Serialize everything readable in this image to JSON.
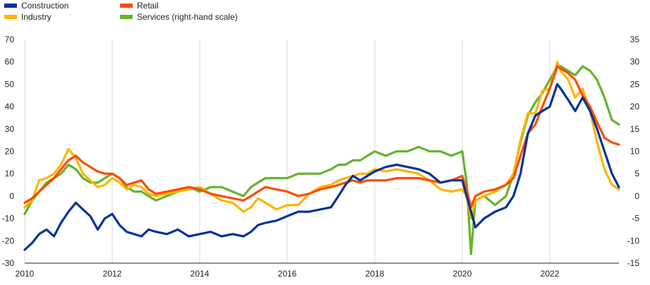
{
  "chart_data": {
    "type": "line",
    "title": "",
    "xlabel": "",
    "ylabel": "",
    "x_range": [
      2010.0,
      2023.58
    ],
    "x_ticks": [
      "2010",
      "2012",
      "2014",
      "2016",
      "2018",
      "2020",
      "2022"
    ],
    "y_left_range": [
      -30,
      70
    ],
    "y_left_ticks": [
      "-30",
      "-20",
      "-10",
      "0",
      "10",
      "20",
      "30",
      "40",
      "50",
      "60",
      "70"
    ],
    "y_right_range": [
      -15,
      35
    ],
    "y_right_ticks": [
      "-15",
      "-10",
      "-5",
      "0",
      "5",
      "10",
      "15",
      "20",
      "25",
      "30",
      "35"
    ],
    "grid": "vertical lines at labelled years",
    "legend_position": "top-left",
    "series": [
      {
        "name": "Construction",
        "axis": "left",
        "color": "#003299",
        "x": [
          2010.0,
          2010.17,
          2010.33,
          2010.5,
          2010.67,
          2010.83,
          2011.0,
          2011.17,
          2011.33,
          2011.5,
          2011.67,
          2011.83,
          2012.0,
          2012.17,
          2012.33,
          2012.5,
          2012.67,
          2012.83,
          2013.0,
          2013.25,
          2013.5,
          2013.75,
          2014.0,
          2014.25,
          2014.5,
          2014.75,
          2015.0,
          2015.17,
          2015.33,
          2015.5,
          2015.75,
          2016.0,
          2016.25,
          2016.5,
          2016.75,
          2017.0,
          2017.17,
          2017.33,
          2017.5,
          2017.67,
          2017.83,
          2018.0,
          2018.25,
          2018.5,
          2018.75,
          2019.0,
          2019.25,
          2019.5,
          2019.75,
          2020.0,
          2020.1,
          2020.2,
          2020.3,
          2020.5,
          2020.75,
          2021.0,
          2021.17,
          2021.33,
          2021.5,
          2021.67,
          2021.83,
          2022.0,
          2022.17,
          2022.25,
          2022.42,
          2022.58,
          2022.75,
          2022.92,
          2023.08,
          2023.25,
          2023.42,
          2023.58
        ],
        "values": [
          -24,
          -21,
          -17,
          -15,
          -18,
          -12,
          -7,
          -3,
          -6,
          -9,
          -15,
          -10,
          -8,
          -13,
          -16,
          -17,
          -18,
          -15,
          -16,
          -17,
          -15,
          -18,
          -17,
          -16,
          -18,
          -17,
          -18,
          -16,
          -13,
          -12,
          -11,
          -9,
          -7,
          -7,
          -6,
          -5,
          0,
          5,
          9,
          7,
          9,
          11,
          13,
          14,
          13,
          12,
          10,
          6,
          7,
          7,
          0,
          -7,
          -14,
          -10,
          -7,
          -5,
          0,
          10,
          28,
          36,
          38,
          40,
          50,
          48,
          43,
          38,
          44,
          38,
          30,
          20,
          10,
          4
        ]
      },
      {
        "name": "Industry",
        "axis": "left",
        "color": "#FFB400",
        "x": [
          2010.0,
          2010.17,
          2010.33,
          2010.5,
          2010.67,
          2010.83,
          2011.0,
          2011.17,
          2011.33,
          2011.5,
          2011.67,
          2011.83,
          2012.0,
          2012.17,
          2012.33,
          2012.5,
          2012.67,
          2012.83,
          2013.0,
          2013.25,
          2013.5,
          2013.75,
          2014.0,
          2014.25,
          2014.5,
          2014.75,
          2015.0,
          2015.17,
          2015.33,
          2015.5,
          2015.75,
          2016.0,
          2016.25,
          2016.5,
          2016.75,
          2017.0,
          2017.17,
          2017.33,
          2017.5,
          2017.67,
          2017.83,
          2018.0,
          2018.25,
          2018.5,
          2018.75,
          2019.0,
          2019.25,
          2019.5,
          2019.75,
          2020.0,
          2020.1,
          2020.2,
          2020.3,
          2020.5,
          2020.75,
          2021.0,
          2021.17,
          2021.33,
          2021.5,
          2021.67,
          2021.83,
          2022.0,
          2022.17,
          2022.25,
          2022.42,
          2022.58,
          2022.75,
          2022.92,
          2023.08,
          2023.25,
          2023.42,
          2023.58
        ],
        "values": [
          -5,
          -2,
          7,
          8,
          10,
          14,
          21,
          17,
          10,
          7,
          4,
          5,
          8,
          6,
          3,
          5,
          4,
          1,
          0,
          1,
          2,
          3,
          4,
          1,
          -2,
          -3,
          -7,
          -5,
          -1,
          -3,
          -6,
          -4,
          -4,
          1,
          4,
          5,
          7,
          8,
          9,
          10,
          10,
          12,
          11,
          12,
          11,
          10,
          7,
          3,
          2,
          3,
          0,
          -10,
          -2,
          0,
          2,
          5,
          10,
          25,
          37,
          37,
          47,
          48,
          60,
          56,
          52,
          44,
          48,
          38,
          24,
          12,
          5,
          3
        ]
      },
      {
        "name": "Retail",
        "axis": "left",
        "color": "#FF4B00",
        "x": [
          2010.0,
          2010.17,
          2010.33,
          2010.5,
          2010.67,
          2010.83,
          2011.0,
          2011.17,
          2011.33,
          2011.5,
          2011.67,
          2011.83,
          2012.0,
          2012.17,
          2012.33,
          2012.5,
          2012.67,
          2012.83,
          2013.0,
          2013.25,
          2013.5,
          2013.75,
          2014.0,
          2014.25,
          2014.5,
          2014.75,
          2015.0,
          2015.17,
          2015.33,
          2015.5,
          2015.75,
          2016.0,
          2016.25,
          2016.5,
          2016.75,
          2017.0,
          2017.17,
          2017.33,
          2017.5,
          2017.67,
          2017.83,
          2018.0,
          2018.25,
          2018.5,
          2018.75,
          2019.0,
          2019.25,
          2019.5,
          2019.75,
          2020.0,
          2020.1,
          2020.2,
          2020.3,
          2020.5,
          2020.75,
          2021.0,
          2021.17,
          2021.33,
          2021.5,
          2021.67,
          2021.83,
          2022.0,
          2022.17,
          2022.25,
          2022.42,
          2022.58,
          2022.75,
          2022.92,
          2023.08,
          2023.25,
          2023.42,
          2023.58
        ],
        "values": [
          -3,
          -1,
          2,
          5,
          8,
          12,
          16,
          18,
          15,
          13,
          11,
          10,
          10,
          8,
          5,
          6,
          7,
          3,
          1,
          2,
          3,
          4,
          3,
          1,
          0,
          -1,
          -2,
          0,
          2,
          4,
          3,
          2,
          0,
          1,
          3,
          4,
          5,
          6,
          7,
          6,
          7,
          7,
          7,
          8,
          8,
          8,
          7,
          6,
          7,
          9,
          3,
          -5,
          0,
          2,
          3,
          5,
          8,
          18,
          28,
          32,
          40,
          48,
          58,
          57,
          55,
          52,
          45,
          40,
          33,
          26,
          24,
          23
        ]
      },
      {
        "name": "Services (right-hand scale)",
        "axis": "right",
        "color": "#65B32E",
        "x": [
          2010.0,
          2010.17,
          2010.33,
          2010.5,
          2010.67,
          2010.83,
          2011.0,
          2011.17,
          2011.33,
          2011.5,
          2011.67,
          2011.83,
          2012.0,
          2012.17,
          2012.33,
          2012.5,
          2012.67,
          2012.83,
          2013.0,
          2013.25,
          2013.5,
          2013.75,
          2014.0,
          2014.25,
          2014.5,
          2014.75,
          2015.0,
          2015.17,
          2015.33,
          2015.5,
          2015.75,
          2016.0,
          2016.25,
          2016.5,
          2016.75,
          2017.0,
          2017.17,
          2017.33,
          2017.5,
          2017.67,
          2017.83,
          2018.0,
          2018.25,
          2018.5,
          2018.75,
          2019.0,
          2019.25,
          2019.5,
          2019.75,
          2020.0,
          2020.1,
          2020.2,
          2020.3,
          2020.5,
          2020.75,
          2021.0,
          2021.17,
          2021.33,
          2021.5,
          2021.67,
          2021.83,
          2022.0,
          2022.17,
          2022.25,
          2022.42,
          2022.58,
          2022.75,
          2022.92,
          2023.08,
          2023.25,
          2023.42,
          2023.58
        ],
        "values": [
          -4,
          -1,
          1,
          3,
          4,
          5,
          7,
          6,
          4,
          3,
          3,
          4,
          5,
          4,
          2,
          1,
          1,
          0,
          -1,
          0,
          1,
          2,
          1,
          2,
          2,
          1,
          0,
          2,
          3,
          4,
          4,
          4,
          5,
          5,
          5,
          6,
          7,
          7,
          8,
          8,
          9,
          10,
          9,
          10,
          10,
          11,
          10,
          10,
          9,
          10,
          3,
          -13,
          -1,
          0,
          -2,
          0,
          5,
          12,
          18,
          21,
          23,
          26,
          29,
          29,
          28,
          27,
          29,
          28,
          26,
          22,
          17,
          16
        ]
      }
    ]
  }
}
